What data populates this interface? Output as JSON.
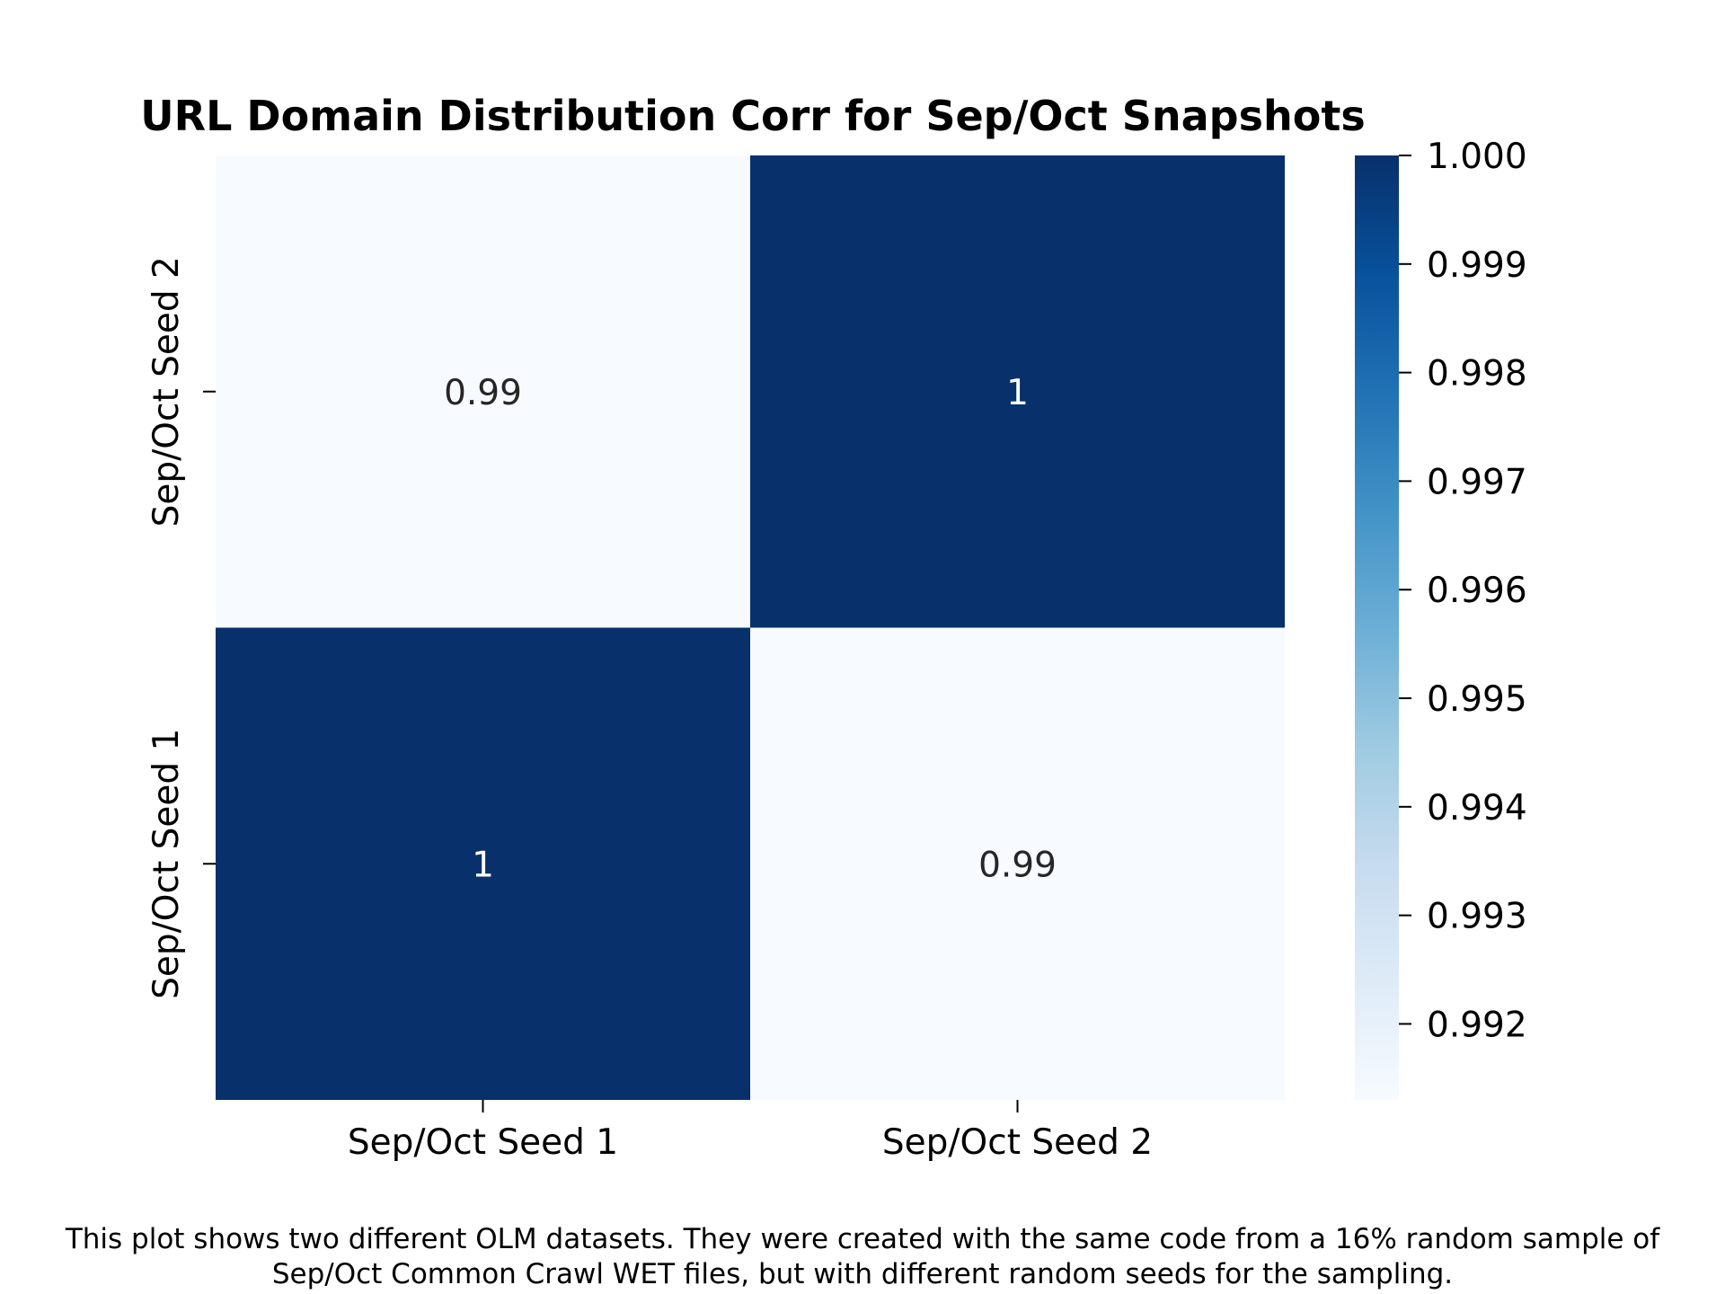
{
  "chart_data": {
    "type": "heatmap",
    "title": "URL Domain Distribution Corr for Sep/Oct Snapshots",
    "x_labels": [
      "Sep/Oct Seed 1",
      "Sep/Oct Seed 2"
    ],
    "y_labels": [
      "Sep/Oct Seed 2",
      "Sep/Oct Seed 1"
    ],
    "values": [
      [
        0.9913,
        1.0
      ],
      [
        1.0,
        0.9913
      ]
    ],
    "annotations": [
      [
        "0.99",
        "1"
      ],
      [
        "1",
        "0.99"
      ]
    ],
    "colormap": "Blues",
    "colors": {
      "low": "#f7fbff",
      "high": "#08306b"
    },
    "colorbar": {
      "range": [
        0.9913,
        1.0
      ],
      "ticks": [
        0.992,
        0.993,
        0.994,
        0.995,
        0.996,
        0.997,
        0.998,
        0.999,
        1.0
      ],
      "tick_labels": [
        "0.992",
        "0.993",
        "0.994",
        "0.995",
        "0.996",
        "0.997",
        "0.998",
        "0.999",
        "1.000"
      ]
    }
  },
  "caption": {
    "line1": "This plot shows two different OLM datasets. They were created with the same code from a 16% random sample of",
    "line2": "Sep/Oct Common Crawl WET files, but with different random seeds for the sampling."
  }
}
